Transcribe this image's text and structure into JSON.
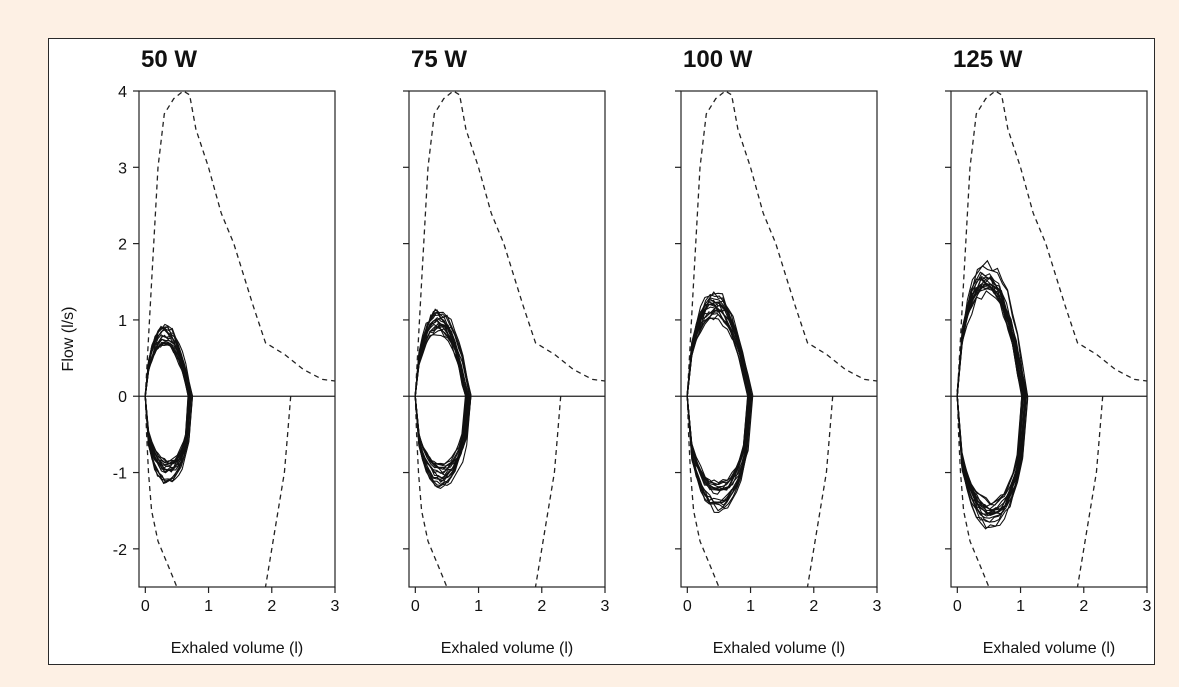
{
  "figure": {
    "background": "#fdf0e4",
    "panel_background": "#ffffff"
  },
  "chart_data": [
    {
      "type": "line",
      "title": "50 W",
      "xlabel": "Exhaled volume (l)",
      "ylabel": "Flow (l/s)",
      "xlim": [
        -0.1,
        3
      ],
      "ylim": [
        -2.5,
        4
      ],
      "xticks": [
        0,
        1,
        2,
        3
      ],
      "yticks": [
        -2,
        -1,
        0,
        1,
        2,
        3,
        4
      ],
      "grid": false,
      "envelope_expiratory": {
        "x": [
          0,
          0.1,
          0.2,
          0.3,
          0.45,
          0.6,
          0.7,
          0.8,
          1.0,
          1.2,
          1.4,
          1.7,
          1.9,
          2.2,
          2.5,
          2.8,
          3.0
        ],
        "y": [
          0,
          1.5,
          3.0,
          3.7,
          3.9,
          4.0,
          3.95,
          3.5,
          3.0,
          2.4,
          2.0,
          1.2,
          0.7,
          0.55,
          0.35,
          0.22,
          0.2
        ]
      },
      "envelope_inspiratory_left": {
        "x": [
          0,
          0.02,
          0.05,
          0.1,
          0.2,
          0.35,
          0.5
        ],
        "y": [
          0,
          -0.5,
          -1.0,
          -1.5,
          -1.9,
          -2.2,
          -2.5
        ]
      },
      "envelope_inspiratory_right": {
        "x": [
          2.3,
          2.25,
          2.2,
          2.1,
          2.0,
          1.9
        ],
        "y": [
          0,
          -0.5,
          -1.0,
          -1.5,
          -2.0,
          -2.5
        ]
      },
      "tidal_loops": {
        "count": 18,
        "start_x": 0,
        "end_x": 0.75,
        "peak_expiratory_flow": 0.9,
        "peak_inspiratory_flow": -1.0
      }
    },
    {
      "type": "line",
      "title": "75 W",
      "xlabel": "Exhaled volume (l)",
      "ylabel": "",
      "xlim": [
        -0.1,
        3
      ],
      "ylim": [
        -2.5,
        4
      ],
      "xticks": [
        0,
        1,
        2,
        3
      ],
      "yticks": [
        -2,
        -1,
        0,
        1,
        2,
        3,
        4
      ],
      "grid": false,
      "envelope_expiratory": {
        "x": [
          0,
          0.1,
          0.2,
          0.3,
          0.45,
          0.6,
          0.7,
          0.8,
          1.0,
          1.2,
          1.4,
          1.7,
          1.9,
          2.2,
          2.5,
          2.8,
          3.0
        ],
        "y": [
          0,
          1.5,
          3.0,
          3.7,
          3.9,
          4.0,
          3.95,
          3.5,
          3.0,
          2.4,
          2.0,
          1.2,
          0.7,
          0.55,
          0.35,
          0.22,
          0.2
        ]
      },
      "envelope_inspiratory_left": {
        "x": [
          0,
          0.02,
          0.05,
          0.1,
          0.2,
          0.35,
          0.5
        ],
        "y": [
          0,
          -0.5,
          -1.0,
          -1.5,
          -1.9,
          -2.2,
          -2.5
        ]
      },
      "envelope_inspiratory_right": {
        "x": [
          2.3,
          2.25,
          2.2,
          2.1,
          2.0,
          1.9
        ],
        "y": [
          0,
          -0.5,
          -1.0,
          -1.5,
          -2.0,
          -2.5
        ]
      },
      "tidal_loops": {
        "count": 18,
        "start_x": 0,
        "end_x": 0.88,
        "peak_expiratory_flow": 1.1,
        "peak_inspiratory_flow": -1.05
      }
    },
    {
      "type": "line",
      "title": "100 W",
      "xlabel": "Exhaled volume (l)",
      "ylabel": "",
      "xlim": [
        -0.1,
        3
      ],
      "ylim": [
        -2.5,
        4
      ],
      "xticks": [
        0,
        1,
        2,
        3
      ],
      "yticks": [
        -2,
        -1,
        0,
        1,
        2,
        3,
        4
      ],
      "grid": false,
      "envelope_expiratory": {
        "x": [
          0,
          0.1,
          0.2,
          0.3,
          0.45,
          0.6,
          0.7,
          0.8,
          1.0,
          1.2,
          1.4,
          1.7,
          1.9,
          2.2,
          2.5,
          2.8,
          3.0
        ],
        "y": [
          0,
          1.5,
          3.0,
          3.7,
          3.9,
          4.0,
          3.95,
          3.5,
          3.0,
          2.4,
          2.0,
          1.2,
          0.7,
          0.55,
          0.35,
          0.22,
          0.2
        ]
      },
      "envelope_inspiratory_left": {
        "x": [
          0,
          0.02,
          0.05,
          0.1,
          0.2,
          0.35,
          0.5
        ],
        "y": [
          0,
          -0.5,
          -1.0,
          -1.5,
          -1.9,
          -2.2,
          -2.5
        ]
      },
      "envelope_inspiratory_right": {
        "x": [
          2.3,
          2.25,
          2.2,
          2.1,
          2.0,
          1.9
        ],
        "y": [
          0,
          -0.5,
          -1.0,
          -1.5,
          -2.0,
          -2.5
        ]
      },
      "tidal_loops": {
        "count": 18,
        "start_x": 0,
        "end_x": 1.05,
        "peak_expiratory_flow": 1.35,
        "peak_inspiratory_flow": -1.3
      }
    },
    {
      "type": "line",
      "title": "125 W",
      "xlabel": "Exhaled volume (l)",
      "ylabel": "",
      "xlim": [
        -0.1,
        3
      ],
      "ylim": [
        -2.5,
        4
      ],
      "xticks": [
        0,
        1,
        2,
        3
      ],
      "yticks": [
        -2,
        -1,
        0,
        1,
        2,
        3,
        4
      ],
      "grid": false,
      "envelope_expiratory": {
        "x": [
          0,
          0.1,
          0.2,
          0.3,
          0.45,
          0.6,
          0.7,
          0.8,
          1.0,
          1.2,
          1.4,
          1.7,
          1.9,
          2.2,
          2.5,
          2.8,
          3.0
        ],
        "y": [
          0,
          1.5,
          3.0,
          3.7,
          3.9,
          4.0,
          3.95,
          3.5,
          3.0,
          2.4,
          2.0,
          1.2,
          0.7,
          0.55,
          0.35,
          0.22,
          0.2
        ]
      },
      "envelope_inspiratory_left": {
        "x": [
          0,
          0.02,
          0.05,
          0.1,
          0.2,
          0.35,
          0.5
        ],
        "y": [
          0,
          -0.5,
          -1.0,
          -1.5,
          -1.9,
          -2.2,
          -2.5
        ]
      },
      "envelope_inspiratory_right": {
        "x": [
          2.3,
          2.25,
          2.2,
          2.1,
          2.0,
          1.9
        ],
        "y": [
          0,
          -0.5,
          -1.0,
          -1.5,
          -2.0,
          -2.5
        ]
      },
      "tidal_loops": {
        "count": 18,
        "start_x": 0,
        "end_x": 1.12,
        "peak_expiratory_flow": 1.75,
        "peak_inspiratory_flow": -1.55
      }
    }
  ]
}
